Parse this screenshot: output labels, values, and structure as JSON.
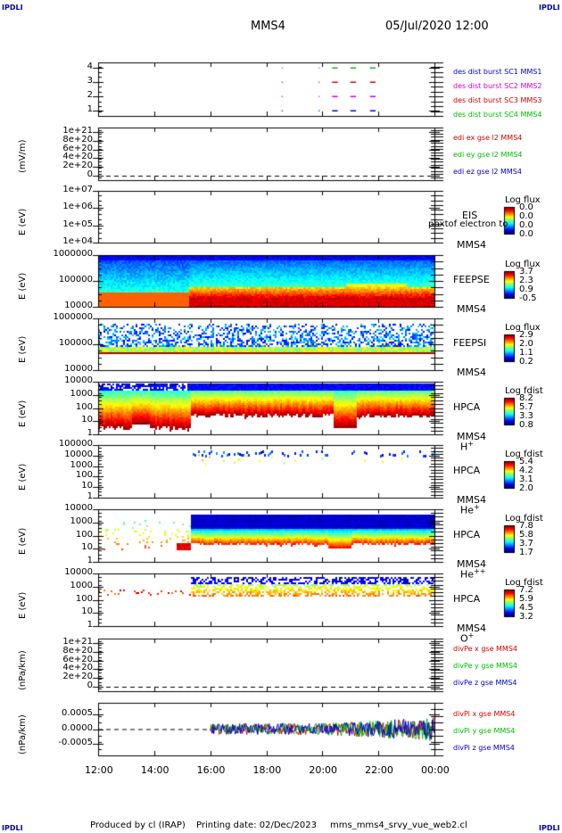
{
  "header": {
    "corner_left": "IPDLI",
    "corner_right": "IPDLI",
    "spacecraft": "MMS4",
    "date": "05/Jul/2020 12:00"
  },
  "footer": {
    "produced_by": "Produced by cl (IRAP)",
    "printing_date": "Printing date: 02/Dec/2023",
    "script_name": "mms_mms4_srvy_vue_web2.cl",
    "corner_left": "IPDLI",
    "corner_right": "IPDLI"
  },
  "colors": {
    "mms1": "#0000cc",
    "mms2": "#cc00cc",
    "mms3": "#cc0000",
    "mms4": "#00bb00",
    "x_component": "#cc0000",
    "y_component": "#00bb00",
    "z_component": "#0000cc"
  },
  "chart_data": {
    "type": "stacked-timeseries",
    "x_tick_labels": [
      "12:00",
      "14:00",
      "16:00",
      "18:00",
      "20:00",
      "22:00",
      "00:00"
    ],
    "x_range_hours": [
      12,
      24
    ],
    "panels": [
      {
        "id": "burst",
        "type": "scatter",
        "ylabel": "",
        "y_ticks": [
          "4",
          "3",
          "2",
          "1"
        ],
        "legend": [
          "des dist burst SC1 MMS1",
          "des dist burst SC2 MMS2",
          "des dist burst SC3 MMS3",
          "des dist burst SC4 MMS4"
        ],
        "series": [
          {
            "name": "MMS1",
            "y": 1,
            "intervals": [
              [
                18.55,
                18.57
              ],
              [
                19.87,
                19.89
              ],
              [
                20.35,
                20.55
              ],
              [
                21.0,
                21.2
              ],
              [
                21.7,
                21.9
              ]
            ]
          },
          {
            "name": "MMS2",
            "y": 2,
            "intervals": [
              [
                18.55,
                18.57
              ],
              [
                19.87,
                19.89
              ],
              [
                20.35,
                20.55
              ],
              [
                21.0,
                21.2
              ],
              [
                21.7,
                21.9
              ]
            ]
          },
          {
            "name": "MMS3",
            "y": 3,
            "intervals": [
              [
                18.55,
                18.57
              ],
              [
                19.87,
                19.89
              ],
              [
                20.35,
                20.55
              ],
              [
                21.0,
                21.2
              ],
              [
                21.7,
                21.9
              ]
            ]
          },
          {
            "name": "MMS4",
            "y": 4,
            "intervals": [
              [
                18.55,
                18.57
              ],
              [
                19.87,
                19.89
              ],
              [
                20.35,
                20.55
              ],
              [
                21.0,
                21.2
              ],
              [
                21.7,
                21.9
              ]
            ]
          }
        ]
      },
      {
        "id": "edi",
        "type": "line",
        "ylabel": "(mV/m)",
        "y_ticks": [
          "1e+21",
          "8e+20",
          "6e+20",
          "4e+20",
          "2e+20",
          "0"
        ],
        "legend": [
          "edi ex gse l2 MMS4",
          "edi ey gse l2 MMS4",
          "edi ez gse l2 MMS4"
        ],
        "dashed_zero": true
      },
      {
        "id": "eis",
        "type": "heatmap",
        "ylabel": "E (eV)",
        "y_ticks": [
          "1e+07",
          "1e+06",
          "1e+05",
          "1e+04"
        ],
        "instrument": "EIS",
        "spacecraft": "MMS4",
        "overlay_text": "phxtof electron to",
        "colorbar_title": "Log flux",
        "colorbar_ticks": [
          "0.0",
          "0.0",
          "0.0",
          "0.0"
        ]
      },
      {
        "id": "feepse",
        "type": "heatmap",
        "ylabel": "E (eV)",
        "y_ticks": [
          "1000000",
          "100000",
          "10000"
        ],
        "instrument": "FEEPSE",
        "spacecraft": "MMS4",
        "colorbar_title": "Log flux",
        "colorbar_ticks": [
          "3.7",
          "2.3",
          "0.9",
          "-0.5"
        ]
      },
      {
        "id": "feepsi",
        "type": "heatmap",
        "ylabel": "E (eV)",
        "y_ticks": [
          "1000000",
          "100000",
          "10000"
        ],
        "instrument": "FEEPSI",
        "spacecraft": "MMS4",
        "colorbar_title": "Log flux",
        "colorbar_ticks": [
          "2.9",
          "2.0",
          "1.1",
          "0.2"
        ]
      },
      {
        "id": "hpca_h",
        "type": "heatmap",
        "ylabel": "E (eV)",
        "y_ticks": [
          "10000",
          "1000",
          "100",
          "10",
          "1"
        ],
        "instrument": "HPCA",
        "spacecraft": "MMS4",
        "species": "H",
        "species_sup": "+",
        "colorbar_title": "Log fdist",
        "colorbar_ticks": [
          "8.2",
          "5.7",
          "3.3",
          "0.8"
        ]
      },
      {
        "id": "hpca_he",
        "type": "heatmap",
        "ylabel": "E (eV)",
        "y_ticks": [
          "100000",
          "10000",
          "1000",
          "100",
          "10",
          "1"
        ],
        "instrument": "HPCA",
        "spacecraft": "MMS4",
        "species": "He",
        "species_sup": "+",
        "colorbar_title": "Log fdist",
        "colorbar_ticks": [
          "5.4",
          "4.2",
          "3.1",
          "2.0"
        ]
      },
      {
        "id": "hpca_hepp",
        "type": "heatmap",
        "ylabel": "E (eV)",
        "y_ticks": [
          "10000",
          "1000",
          "100",
          "10",
          "1"
        ],
        "instrument": "HPCA",
        "spacecraft": "MMS4",
        "species": "He",
        "species_sup": "++",
        "colorbar_title": "Log fdist",
        "colorbar_ticks": [
          "7.8",
          "5.8",
          "3.7",
          "1.7"
        ]
      },
      {
        "id": "hpca_o",
        "type": "heatmap",
        "ylabel": "E (eV)",
        "y_ticks": [
          "10000",
          "1000",
          "100",
          "10",
          "1"
        ],
        "instrument": "HPCA",
        "spacecraft": "MMS4",
        "species": "O",
        "species_sup": "+",
        "colorbar_title": "Log fdist",
        "colorbar_ticks": [
          "7.2",
          "5.9",
          "4.5",
          "3.2"
        ]
      },
      {
        "id": "divpe",
        "type": "line",
        "ylabel": "(nPa/km)",
        "y_ticks": [
          "1e+21",
          "8e+20",
          "6e+20",
          "4e+20",
          "2e+20",
          "0"
        ],
        "legend": [
          "divPe x gse MMS4",
          "divPe y gse MMS4",
          "divPe z gse MMS4"
        ],
        "dashed_zero": true
      },
      {
        "id": "divpi",
        "type": "line",
        "ylabel": "(nPa/km)",
        "y_ticks": [
          "0.0005",
          "0.0000",
          "-0.0005"
        ],
        "ylim": [
          -0.0009,
          0.0009
        ],
        "legend": [
          "divPi x gse MMS4",
          "divPi y gse MMS4",
          "divPi z gse MMS4"
        ],
        "data_start_hour": 16.0,
        "amplitude": 0.0002,
        "dashed_zero": true
      }
    ]
  }
}
